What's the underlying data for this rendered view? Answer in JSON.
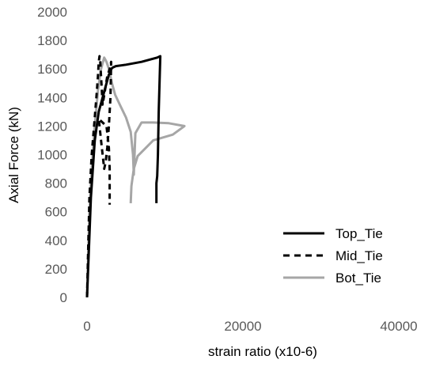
{
  "chart_data": {
    "type": "scatter",
    "title": "",
    "xlabel": "strain ratio (x10-6)",
    "ylabel": "Axial Force (kN)",
    "xlim": [
      0,
      40000
    ],
    "ylim": [
      0,
      2000
    ],
    "x_ticks": [
      0,
      20000,
      40000
    ],
    "x_tick_labels": [
      "0",
      "20000",
      "40000"
    ],
    "y_ticks": [
      0,
      200,
      400,
      600,
      800,
      1000,
      1200,
      1400,
      1600,
      1800,
      2000
    ],
    "y_tick_labels": [
      "0",
      "200",
      "400",
      "600",
      "800",
      "1000",
      "1200",
      "1400",
      "1600",
      "1800",
      "2000"
    ],
    "grid": false,
    "legend_position": "right",
    "series": [
      {
        "name": "Top_Tie",
        "color": "#000000",
        "dash": "solid",
        "x": [
          0,
          500,
          1000,
          1500,
          2000,
          2500,
          2800,
          3000,
          3100,
          3300,
          3700,
          5000,
          7000,
          9000,
          9400,
          9200,
          9100,
          9000,
          8900,
          8900
        ],
        "y": [
          0,
          700,
          1100,
          1300,
          1400,
          1500,
          1560,
          1580,
          1600,
          1610,
          1620,
          1630,
          1650,
          1680,
          1690,
          1300,
          1000,
          850,
          800,
          660
        ]
      },
      {
        "name": "Mid_Tie",
        "color": "#000000",
        "dash": "dashed",
        "x": [
          0,
          300,
          600,
          900,
          1200,
          1400,
          1500,
          1600,
          1700,
          2000,
          2300,
          2600,
          2900,
          3100,
          3000,
          2800,
          2600,
          2400,
          2200,
          2000,
          1800,
          1600,
          1500,
          2500,
          2800,
          2900,
          2900
        ],
        "y": [
          0,
          700,
          1000,
          1200,
          1400,
          1550,
          1650,
          1690,
          1650,
          1350,
          1450,
          1550,
          1600,
          1650,
          1400,
          1200,
          1050,
          950,
          900,
          1000,
          1100,
          1200,
          1250,
          1200,
          1050,
          900,
          650
        ]
      },
      {
        "name": "Bot_Tie",
        "color": "#a6a6a6",
        "dash": "solid",
        "x": [
          0,
          300,
          600,
          1000,
          1400,
          1800,
          2200,
          2500,
          2800,
          3200,
          3600,
          4200,
          5000,
          5600,
          5900,
          6000,
          6200,
          7000,
          8500,
          10500,
          12500,
          11000,
          8500,
          6500,
          6000,
          5700,
          5600
        ],
        "y": [
          0,
          600,
          900,
          1200,
          1450,
          1600,
          1680,
          1650,
          1600,
          1500,
          1420,
          1350,
          1260,
          1160,
          1000,
          860,
          1150,
          1225,
          1225,
          1220,
          1200,
          1140,
          1100,
          990,
          900,
          780,
          660
        ]
      }
    ]
  }
}
